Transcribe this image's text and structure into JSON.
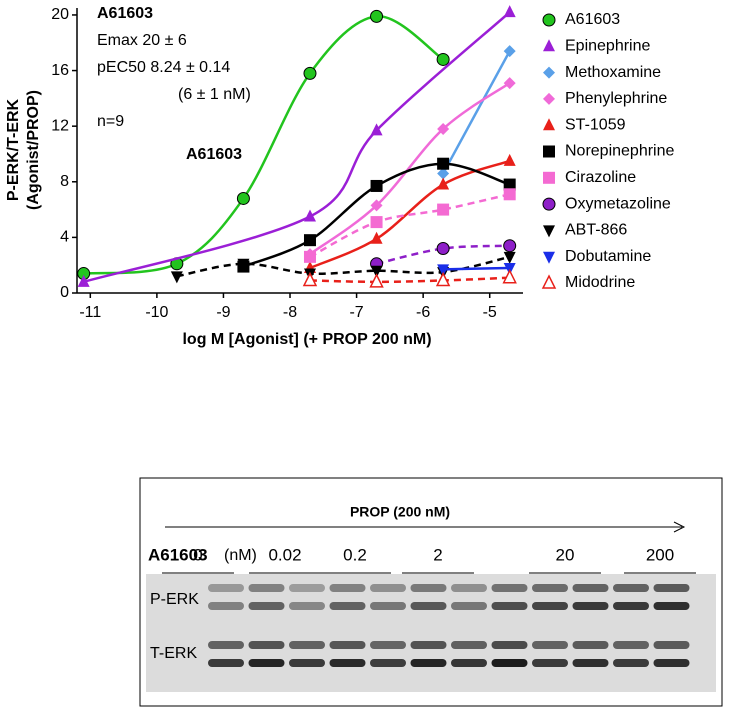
{
  "chart_data": {
    "type": "scatter",
    "ylabel": [
      "P-ERK/T-ERK",
      "(Agonist/PROP)"
    ],
    "xlabel": "log M [Agonist]  (+ PROP 200 nM)",
    "annotations": [
      "A61603",
      "Emax 20 ± 6",
      "pEC50 8.24 ± 0.14",
      "(6 ± 1 nM)",
      "n=9",
      "A61603"
    ],
    "x": [
      -11.1,
      -9.7,
      -8.7,
      -7.7,
      -6.7,
      -5.7,
      -4.7
    ],
    "xlim": [
      -11.2,
      -4.5
    ],
    "xticks": [
      -11,
      -10,
      -9,
      -8,
      -7,
      -6,
      -5
    ],
    "ylim": [
      0,
      20.5
    ],
    "yticks": [
      0,
      4,
      8,
      12,
      16,
      20
    ],
    "series": [
      {
        "name": "A61603",
        "color": "#22c41e",
        "marker": "circle",
        "line": "solid",
        "values": [
          1.4,
          2.1,
          6.8,
          15.8,
          19.9,
          16.8,
          null
        ]
      },
      {
        "name": "Epinephrine",
        "color": "#9b1fd6",
        "marker": "triangle-up",
        "line": "solid",
        "values": [
          0.8,
          null,
          null,
          5.5,
          11.7,
          null,
          20.2
        ]
      },
      {
        "name": "Methoxamine",
        "color": "#5aa0e8",
        "marker": "diamond",
        "line": "solid",
        "values": [
          null,
          null,
          null,
          null,
          null,
          8.6,
          17.4
        ]
      },
      {
        "name": "Phenylephrine",
        "color": "#f06ad8",
        "marker": "diamond",
        "line": "solid",
        "values": [
          null,
          null,
          null,
          2.8,
          6.3,
          11.8,
          15.1
        ]
      },
      {
        "name": "ST-1059",
        "color": "#e8201a",
        "marker": "triangle-up",
        "line": "solid",
        "values": [
          null,
          null,
          null,
          1.8,
          3.9,
          7.8,
          9.5
        ]
      },
      {
        "name": "Norepinephrine",
        "color": "#000000",
        "marker": "square",
        "line": "solid",
        "values": [
          null,
          null,
          1.9,
          3.8,
          7.7,
          9.3,
          7.8
        ]
      },
      {
        "name": "Cirazoline",
        "color": "#f46ad2",
        "marker": "square",
        "line": "dashed",
        "values": [
          null,
          null,
          null,
          2.6,
          5.1,
          6.0,
          7.1
        ]
      },
      {
        "name": "Oxymetazoline",
        "color": "#8e1fc8",
        "marker": "circle",
        "line": "dashed",
        "values": [
          null,
          null,
          null,
          null,
          2.1,
          3.2,
          3.4
        ]
      },
      {
        "name": "ABT-866",
        "color": "#000000",
        "marker": "triangle-down",
        "line": "dashed",
        "values": [
          null,
          1.2,
          2.1,
          1.4,
          1.6,
          1.5,
          2.6
        ]
      },
      {
        "name": "Dobutamine",
        "color": "#1a2ee8",
        "marker": "triangle-down",
        "line": "solid",
        "values": [
          null,
          null,
          null,
          null,
          null,
          1.7,
          1.8
        ]
      },
      {
        "name": "Midodrine",
        "color": "#e8201a",
        "marker": "triangle-up-open",
        "line": "dashed",
        "values": [
          null,
          null,
          null,
          0.9,
          0.8,
          0.9,
          1.1
        ]
      }
    ]
  },
  "blot": {
    "treatment": "PROP (200 nM)",
    "agonist": "A61603",
    "unit": "(nM)",
    "doses": [
      "0",
      "0.02",
      "0.2",
      "2",
      "20",
      "200"
    ],
    "rows": [
      "P-ERK",
      "T-ERK"
    ]
  }
}
